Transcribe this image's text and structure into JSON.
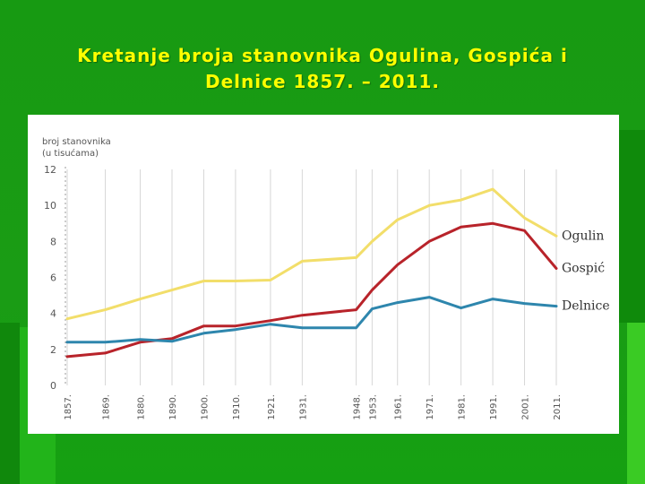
{
  "title_line1": "Kretanje broja stanovnika Ogulina, Gospića i",
  "title_line2": "Delnice 1857. – 2011.",
  "chart_data": {
    "type": "line",
    "ylabel_line1": "broj stanovnika",
    "ylabel_line2": "(u tisućama)",
    "ylim": [
      0,
      12
    ],
    "yticks": [
      0,
      2,
      4,
      6,
      8,
      10,
      12
    ],
    "xlim": [
      1857,
      2011
    ],
    "x": [
      1857,
      1869,
      1880,
      1890,
      1900,
      1910,
      1921,
      1931,
      1948,
      1953,
      1961,
      1971,
      1981,
      1991,
      2001,
      2011
    ],
    "xtick_labels": [
      "1857.",
      "1869.",
      "1880.",
      "1890.",
      "1900.",
      "1910.",
      "1921.",
      "1931.",
      "1948.",
      "1953.",
      "1961.",
      "1971.",
      "1981.",
      "1991.",
      "2001.",
      "2011."
    ],
    "grid": "vertical",
    "series": [
      {
        "name": "Ogulin",
        "color": "#f2de6a",
        "values": [
          3.7,
          4.2,
          4.8,
          5.3,
          5.8,
          5.8,
          5.85,
          6.9,
          7.1,
          8.0,
          9.2,
          10.0,
          10.3,
          10.9,
          9.3,
          8.3
        ]
      },
      {
        "name": "Gospić",
        "color": "#b8232a",
        "values": [
          1.6,
          1.8,
          2.4,
          2.6,
          3.3,
          3.3,
          3.6,
          3.9,
          4.2,
          5.3,
          6.7,
          8.0,
          8.8,
          9.0,
          8.6,
          6.5
        ]
      },
      {
        "name": "Delnice",
        "color": "#2e86ad",
        "values": [
          2.4,
          2.4,
          2.55,
          2.45,
          2.9,
          3.1,
          3.4,
          3.2,
          3.2,
          4.25,
          4.6,
          4.9,
          4.3,
          4.8,
          4.55,
          4.4
        ]
      }
    ]
  }
}
